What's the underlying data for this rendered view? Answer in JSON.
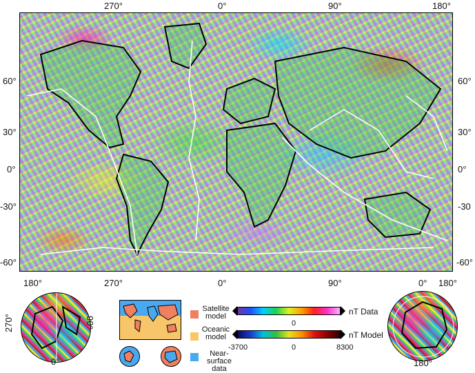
{
  "top_axis": {
    "labels": [
      "270°",
      "0°",
      "90°",
      "180°"
    ]
  },
  "left_axis": {
    "labels": [
      "60°",
      "30°",
      "0°",
      "-30°",
      "-60°"
    ]
  },
  "right_axis": {
    "labels": [
      "60°",
      "30°",
      "0°",
      "-30",
      "-60°"
    ]
  },
  "bottom_axis": {
    "labels": [
      "180°",
      "270°",
      "0°",
      "90°",
      "0°",
      "180°"
    ]
  },
  "north_pole_map": {
    "label_left": "270°",
    "label_right": "90°",
    "label_bottom": "0°"
  },
  "south_pole_map": {
    "label_bottom": "180°"
  },
  "legend": {
    "items": [
      {
        "label_line1": "Satellite",
        "label_line2": "model",
        "color": "#f08060"
      },
      {
        "label_line1": "Oceanic",
        "label_line2": "model",
        "color": "#f8c868"
      },
      {
        "label_line1": "Near-surface",
        "label_line2": "data",
        "color": "#4aa8f0"
      }
    ]
  },
  "colorbars": {
    "data_label": "nT Data",
    "model_label": "nT Model",
    "data_mid": "0",
    "model_min": "-3700",
    "model_mid": "0",
    "model_max": "8300",
    "data_gradient": [
      "#6a3aa0",
      "#2050ff",
      "#00d0ff",
      "#20d050",
      "#e0f020",
      "#ffa000",
      "#ff2020",
      "#ff30d0",
      "#ffb0ff"
    ],
    "model_gradient": [
      "#0a0a60",
      "#1a3ad0",
      "#00c0e0",
      "#30c040",
      "#e8e020",
      "#ff9000",
      "#e01010",
      "#900000",
      "#300000"
    ]
  }
}
